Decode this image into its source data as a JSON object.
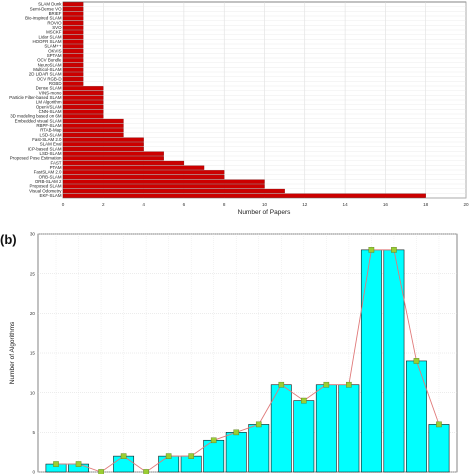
{
  "chart_data": [
    {
      "type": "bar",
      "orientation": "horizontal",
      "panel_label": "",
      "xlabel": "Number of Papers",
      "ylabel": "",
      "xlim": [
        0,
        20
      ],
      "xticks": [
        "0",
        "2",
        "4",
        "6",
        "8",
        "10",
        "12",
        "14",
        "16",
        "18",
        "20"
      ],
      "grid": true,
      "bar_color": "#cc0000",
      "categories": [
        "SLAM Dunk",
        "Semi-Dense VO",
        "BRIEF",
        "Bio-inspired SLAM",
        "ROVIO",
        "SVO",
        "MSCKF",
        "Lidar SLAM",
        "HOOFR SLAM",
        "SLAM++",
        "OKVIS",
        "SPTAM",
        "OCV Bundle",
        "NeuroSLAM",
        "Multicol-SLAM",
        "2D LiDAR SLAM",
        "OCV RGB-D",
        "RGBD",
        "Dense SLAM",
        "VINS-mono",
        "Particle Filter-based SLAM",
        "LM Algorithm",
        "OpenVSLAM",
        "CNN-SLAM",
        "3D modeling based on 6M",
        "Embedded visual SLAM",
        "RBPF-SLAM",
        "RTAB-Map",
        "LSD-SLAM",
        "Fast-SLAM 2.0",
        "SLAM Eval",
        "ICP-based SLAM",
        "LSD-SLAM",
        "Proposed Pose Estimation",
        "FAST",
        "PTAM",
        "FastSLAM 2.0",
        "ORB-SLAM",
        "ORB-SLAM 2",
        "Proposed SLAM",
        "Visual Odometry",
        "EKF-SLAM"
      ],
      "values": [
        1,
        1,
        1,
        1,
        1,
        1,
        1,
        1,
        1,
        1,
        1,
        1,
        1,
        1,
        1,
        1,
        1,
        1,
        2,
        2,
        2,
        2,
        2,
        2,
        2,
        3,
        3,
        3,
        3,
        4,
        4,
        4,
        5,
        5,
        6,
        7,
        8,
        8,
        10,
        10,
        11,
        18
      ]
    },
    {
      "type": "bar",
      "panel_label": "(b)",
      "xlabel": "",
      "ylabel": "Number of Algorithms",
      "ylim": [
        0,
        30
      ],
      "yticks": [
        "0",
        "5",
        "10",
        "15",
        "20",
        "25",
        "30"
      ],
      "grid": true,
      "bar_color": "#00ffff",
      "line_color": "#e07a7a",
      "marker_color": "#9acd32",
      "values": [
        1,
        1,
        0,
        2,
        0,
        2,
        2,
        4,
        5,
        6,
        11,
        9,
        11,
        11,
        28,
        28,
        14,
        6
      ]
    }
  ]
}
